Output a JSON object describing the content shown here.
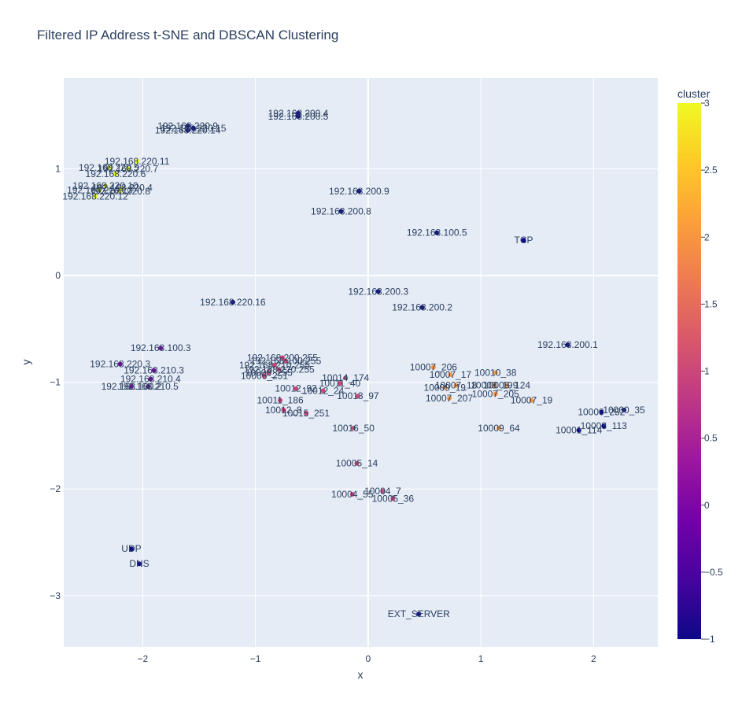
{
  "chart_data": {
    "type": "scatter",
    "title": "Filtered IP Address t-SNE and DBSCAN Clustering",
    "xlabel": "x",
    "ylabel": "y",
    "xlim": [
      -2.7,
      2.57
    ],
    "ylim": [
      -3.48,
      1.85
    ],
    "x_ticks": [
      -2,
      -1,
      0,
      1,
      2
    ],
    "y_ticks": [
      1,
      0,
      -1,
      -2,
      -3
    ],
    "x_tick_labels": [
      "−2",
      "−1",
      "0",
      "1",
      "2"
    ],
    "y_tick_labels": [
      "1",
      "0",
      "−1",
      "−2",
      "−3"
    ],
    "grid": true,
    "colorbar": {
      "title": "cluster",
      "range": [
        -1,
        3
      ],
      "ticks": [
        3,
        2.5,
        2,
        1.5,
        1,
        0.5,
        0,
        -0.5,
        -1
      ],
      "tick_labels": [
        "3",
        "2.5",
        "2",
        "1.5",
        "1",
        "0.5",
        "0",
        "−0.5",
        "−1"
      ],
      "colorscale": [
        "#0d0887",
        "#46039f",
        "#7201a8",
        "#9c179e",
        "#bd3786",
        "#d8576b",
        "#ed7953",
        "#fb9f3a",
        "#fdca26",
        "#f0f921"
      ]
    },
    "points": [
      {
        "label": "192.168.200.4",
        "x": -0.62,
        "y": 1.52,
        "cluster": -1
      },
      {
        "label": "192.168.200.5",
        "x": -0.62,
        "y": 1.49,
        "cluster": -1
      },
      {
        "label": "192.168.220.9",
        "x": -1.6,
        "y": 1.4,
        "cluster": -1
      },
      {
        "label": "192.168.220.15",
        "x": -1.55,
        "y": 1.38,
        "cluster": -1
      },
      {
        "label": "192.168.220.14",
        "x": -1.6,
        "y": 1.36,
        "cluster": -1
      },
      {
        "label": "192.168.220.11",
        "x": -2.05,
        "y": 1.07,
        "cluster": 3
      },
      {
        "label": "192.168.220.7",
        "x": -2.13,
        "y": 1.0,
        "cluster": 3
      },
      {
        "label": "192.168.220.5",
        "x": -2.3,
        "y": 1.01,
        "cluster": 3
      },
      {
        "label": "192.168.220.6",
        "x": -2.24,
        "y": 0.95,
        "cluster": 3
      },
      {
        "label": "192.168.220.10",
        "x": -2.33,
        "y": 0.84,
        "cluster": 3
      },
      {
        "label": "192.168.220.4",
        "x": -2.18,
        "y": 0.82,
        "cluster": 3
      },
      {
        "label": "192.168.220.13",
        "x": -2.38,
        "y": 0.8,
        "cluster": 3
      },
      {
        "label": "192.168.220.8",
        "x": -2.2,
        "y": 0.79,
        "cluster": 3
      },
      {
        "label": "192.168.220.12",
        "x": -2.42,
        "y": 0.74,
        "cluster": 3
      },
      {
        "label": "192.168.200.9",
        "x": -0.08,
        "y": 0.79,
        "cluster": -1
      },
      {
        "label": "192.168.200.8",
        "x": -0.24,
        "y": 0.6,
        "cluster": -1
      },
      {
        "label": "192.168.100.5",
        "x": 0.61,
        "y": 0.4,
        "cluster": -1
      },
      {
        "label": "TCP",
        "x": 1.38,
        "y": 0.33,
        "cluster": -1
      },
      {
        "label": "192.168.200.3",
        "x": 0.09,
        "y": -0.15,
        "cluster": -1
      },
      {
        "label": "192.168.220.16",
        "x": -1.2,
        "y": -0.25,
        "cluster": -1
      },
      {
        "label": "192.168.200.2",
        "x": 0.48,
        "y": -0.3,
        "cluster": -1
      },
      {
        "label": "192.168.200.1",
        "x": 1.77,
        "y": -0.65,
        "cluster": -1
      },
      {
        "label": "192.168.100.3",
        "x": -1.84,
        "y": -0.68,
        "cluster": 0
      },
      {
        "label": "192.168.220.3",
        "x": -2.2,
        "y": -0.83,
        "cluster": 0
      },
      {
        "label": "192.168.210.3",
        "x": -1.9,
        "y": -0.89,
        "cluster": 0
      },
      {
        "label": "192.168.210.4",
        "x": -1.93,
        "y": -0.97,
        "cluster": 0
      },
      {
        "label": "192.168.100.2",
        "x": -2.1,
        "y": -1.04,
        "cluster": 0
      },
      {
        "label": "192.168.210.5",
        "x": -1.95,
        "y": -1.04,
        "cluster": 0
      },
      {
        "label": "192.168.200.255",
        "x": -0.76,
        "y": -0.77,
        "cluster": 1
      },
      {
        "label": "192.168.100.255",
        "x": -0.73,
        "y": -0.8,
        "cluster": 1
      },
      {
        "label": "192.168.210.255",
        "x": -0.83,
        "y": -0.84,
        "cluster": 1
      },
      {
        "label": "192.168.220.255",
        "x": -0.79,
        "y": -0.88,
        "cluster": 1
      },
      {
        "label": "10008_255",
        "x": -0.88,
        "y": -0.91,
        "cluster": 1
      },
      {
        "label": "10006_251",
        "x": -0.92,
        "y": -0.94,
        "cluster": 1
      },
      {
        "label": "10014_174",
        "x": -0.2,
        "y": -0.96,
        "cluster": 1
      },
      {
        "label": "10011_40",
        "x": -0.25,
        "y": -1.01,
        "cluster": 1
      },
      {
        "label": "10012_92",
        "x": -0.64,
        "y": -1.06,
        "cluster": 1
      },
      {
        "label": "10012_24",
        "x": -0.4,
        "y": -1.08,
        "cluster": 1
      },
      {
        "label": "10013_97",
        "x": -0.09,
        "y": -1.13,
        "cluster": 1
      },
      {
        "label": "10011_186",
        "x": -0.78,
        "y": -1.17,
        "cluster": 1
      },
      {
        "label": "10012_8",
        "x": -0.75,
        "y": -1.26,
        "cluster": 1
      },
      {
        "label": "10015_251",
        "x": -0.55,
        "y": -1.29,
        "cluster": 1
      },
      {
        "label": "10016_50",
        "x": -0.13,
        "y": -1.43,
        "cluster": 1
      },
      {
        "label": "10005_14",
        "x": -0.1,
        "y": -1.76,
        "cluster": 1
      },
      {
        "label": "10004_7",
        "x": 0.13,
        "y": -2.02,
        "cluster": 1
      },
      {
        "label": "10004_55",
        "x": -0.14,
        "y": -2.05,
        "cluster": 1
      },
      {
        "label": "10005_36",
        "x": 0.22,
        "y": -2.09,
        "cluster": 1
      },
      {
        "label": "10007_206",
        "x": 0.58,
        "y": -0.86,
        "cluster": 2
      },
      {
        "label": "10007_17",
        "x": 0.73,
        "y": -0.93,
        "cluster": 2
      },
      {
        "label": "10010_38",
        "x": 1.13,
        "y": -0.91,
        "cluster": 2
      },
      {
        "label": "10007_18",
        "x": 0.78,
        "y": -1.03,
        "cluster": 2
      },
      {
        "label": "10009_19",
        "x": 0.68,
        "y": -1.05,
        "cluster": 2
      },
      {
        "label": "10008_199",
        "x": 1.12,
        "y": -1.03,
        "cluster": 2
      },
      {
        "label": "10008_124",
        "x": 1.23,
        "y": -1.03,
        "cluster": 2
      },
      {
        "label": "10007_205",
        "x": 1.13,
        "y": -1.11,
        "cluster": 2
      },
      {
        "label": "10007_207",
        "x": 0.72,
        "y": -1.15,
        "cluster": 2
      },
      {
        "label": "10007_19",
        "x": 1.45,
        "y": -1.17,
        "cluster": 2
      },
      {
        "label": "10009_64",
        "x": 1.16,
        "y": -1.43,
        "cluster": 2
      },
      {
        "label": "10000_252",
        "x": 2.07,
        "y": -1.28,
        "cluster": -1
      },
      {
        "label": "10000_35",
        "x": 2.27,
        "y": -1.26,
        "cluster": -1
      },
      {
        "label": "10003_113",
        "x": 2.09,
        "y": -1.41,
        "cluster": -1
      },
      {
        "label": "10001_114",
        "x": 1.87,
        "y": -1.45,
        "cluster": -1
      },
      {
        "label": "UDP",
        "x": -2.1,
        "y": -2.56,
        "cluster": -1
      },
      {
        "label": "DNS",
        "x": -2.03,
        "y": -2.7,
        "cluster": -1
      },
      {
        "label": "EXT_SERVER",
        "x": 0.45,
        "y": -3.17,
        "cluster": -1
      }
    ]
  }
}
